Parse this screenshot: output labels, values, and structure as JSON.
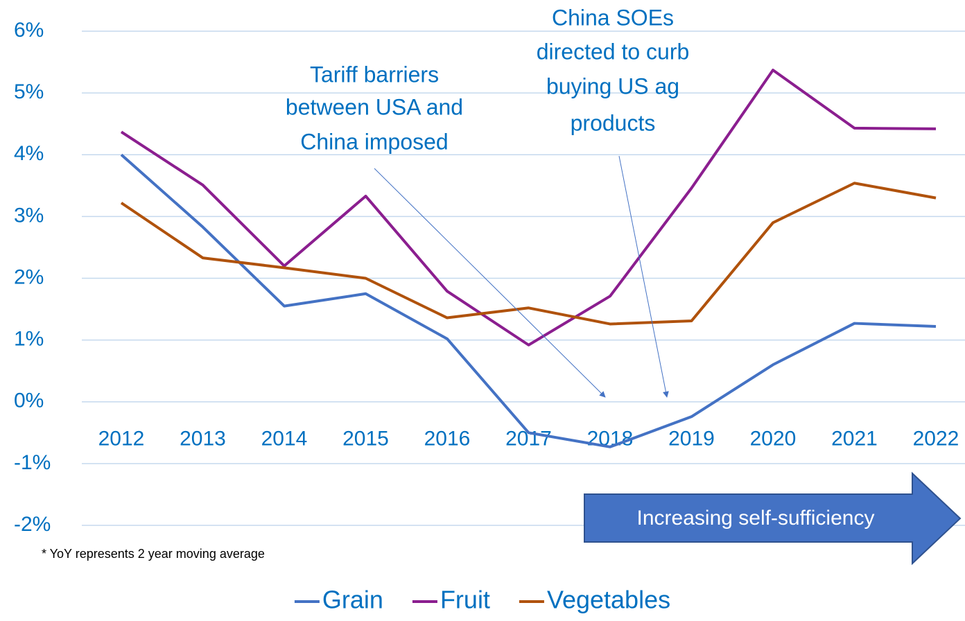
{
  "chart_data": {
    "type": "line",
    "categories": [
      "2012",
      "2013",
      "2014",
      "2015",
      "2016",
      "2017",
      "2018",
      "2019",
      "2020",
      "2021",
      "2022"
    ],
    "series": [
      {
        "name": "Grain",
        "color": "#4472c4",
        "values": [
          4.0,
          2.83,
          1.55,
          1.75,
          1.02,
          -0.5,
          -0.73,
          -0.24,
          0.6,
          1.27,
          1.22
        ]
      },
      {
        "name": "Fruit",
        "color": "#8b1e8f",
        "values": [
          4.37,
          3.51,
          2.2,
          3.33,
          1.79,
          0.92,
          1.71,
          3.46,
          5.37,
          4.43,
          4.42
        ]
      },
      {
        "name": "Vegetables",
        "color": "#b0520c",
        "values": [
          3.22,
          2.33,
          2.17,
          2.0,
          1.36,
          1.52,
          1.26,
          1.31,
          2.9,
          3.54,
          3.3
        ]
      }
    ],
    "ylim": [
      -2,
      6
    ],
    "yticks": [
      {
        "value": -2,
        "label": "-2%"
      },
      {
        "value": -1,
        "label": "-1%"
      },
      {
        "value": 0,
        "label": "0%"
      },
      {
        "value": 1,
        "label": "1%"
      },
      {
        "value": 2,
        "label": "2%"
      },
      {
        "value": 3,
        "label": "3%"
      },
      {
        "value": 4,
        "label": "4%"
      },
      {
        "value": 5,
        "label": "5%"
      },
      {
        "value": 6,
        "label": "6%"
      }
    ],
    "grid": true,
    "legend": "bottom",
    "annotations": [
      {
        "lines": [
          "Tariff barriers",
          "between USA and",
          "China imposed"
        ]
      },
      {
        "lines": [
          "China SOEs",
          "directed to curb",
          "buying US ag",
          "products"
        ]
      }
    ],
    "arrow_label": "Increasing self-sufficiency",
    "footnote": "* YoY represents 2 year moving average"
  }
}
